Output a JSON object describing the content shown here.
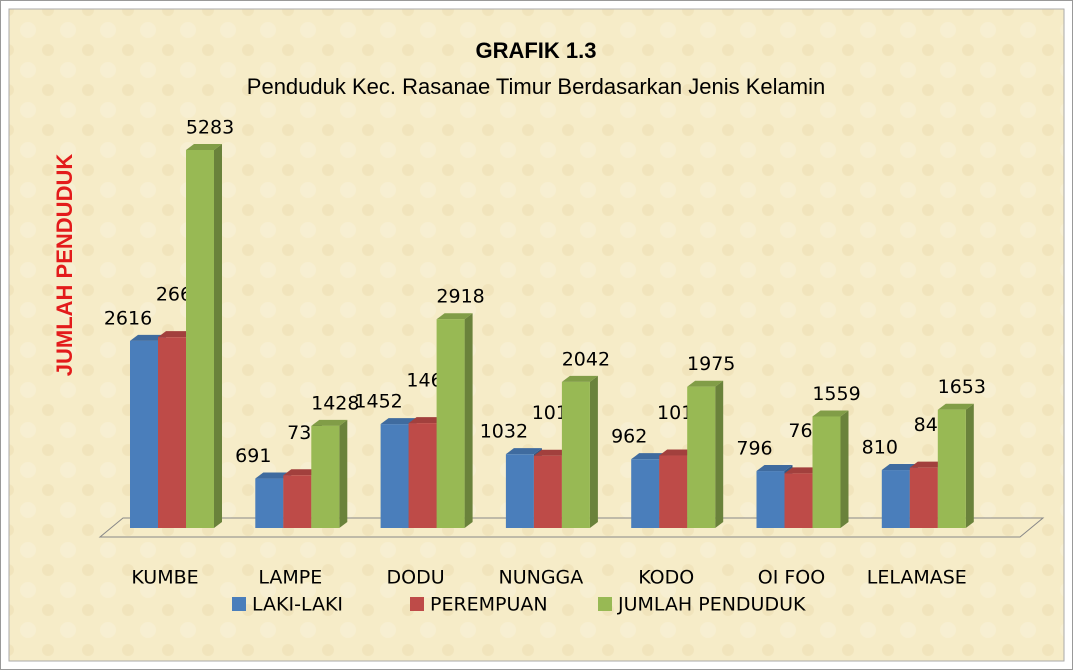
{
  "chart_data": {
    "type": "bar3d",
    "title": "GRAFIK 1.3",
    "subtitle": "Penduduk Kec. Rasanae Timur Berdasarkan Jenis Kelamin",
    "y_label": "JUMLAH  PENDUDUK",
    "categories": [
      "KUMBE",
      "LAMPE",
      "DODU",
      "NUNGGA",
      "KODO",
      "OI FOO",
      "LELAMASE"
    ],
    "series": [
      {
        "name": "LAKI-LAKI",
        "color": "#4a7ebb",
        "values": [
          2616,
          691,
          1452,
          1032,
          962,
          796,
          810
        ]
      },
      {
        "name": "PEREMPUAN",
        "color": "#be4b48",
        "values": [
          2667,
          737,
          1466,
          1010,
          1013,
          763,
          843
        ]
      },
      {
        "name": "JUMLAH PENDUDUK",
        "color": "#98b954",
        "values": [
          5283,
          1428,
          2918,
          2042,
          1975,
          1559,
          1653
        ]
      }
    ]
  }
}
